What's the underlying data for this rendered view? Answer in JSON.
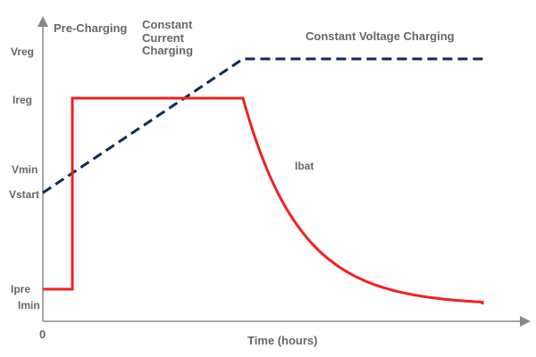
{
  "phases": {
    "pre_charging": "Pre-Charging",
    "constant_current": [
      "Constant",
      "Current",
      "Charging"
    ],
    "constant_voltage": "Constant Voltage Charging"
  },
  "y_labels": {
    "vreg": "Vreg",
    "ireg": "Ireg",
    "vmin": "Vmin",
    "vstart": "Vstart",
    "ipre": "Ipre",
    "imin": "Imin"
  },
  "x_axis": {
    "origin": "0",
    "label": "Time (hours)"
  },
  "curve_labels": {
    "ibat": "Ibat"
  },
  "colors": {
    "current": "#ee2222",
    "voltage": "#0d2b55",
    "axis": "#888888",
    "text": "#666666"
  }
}
